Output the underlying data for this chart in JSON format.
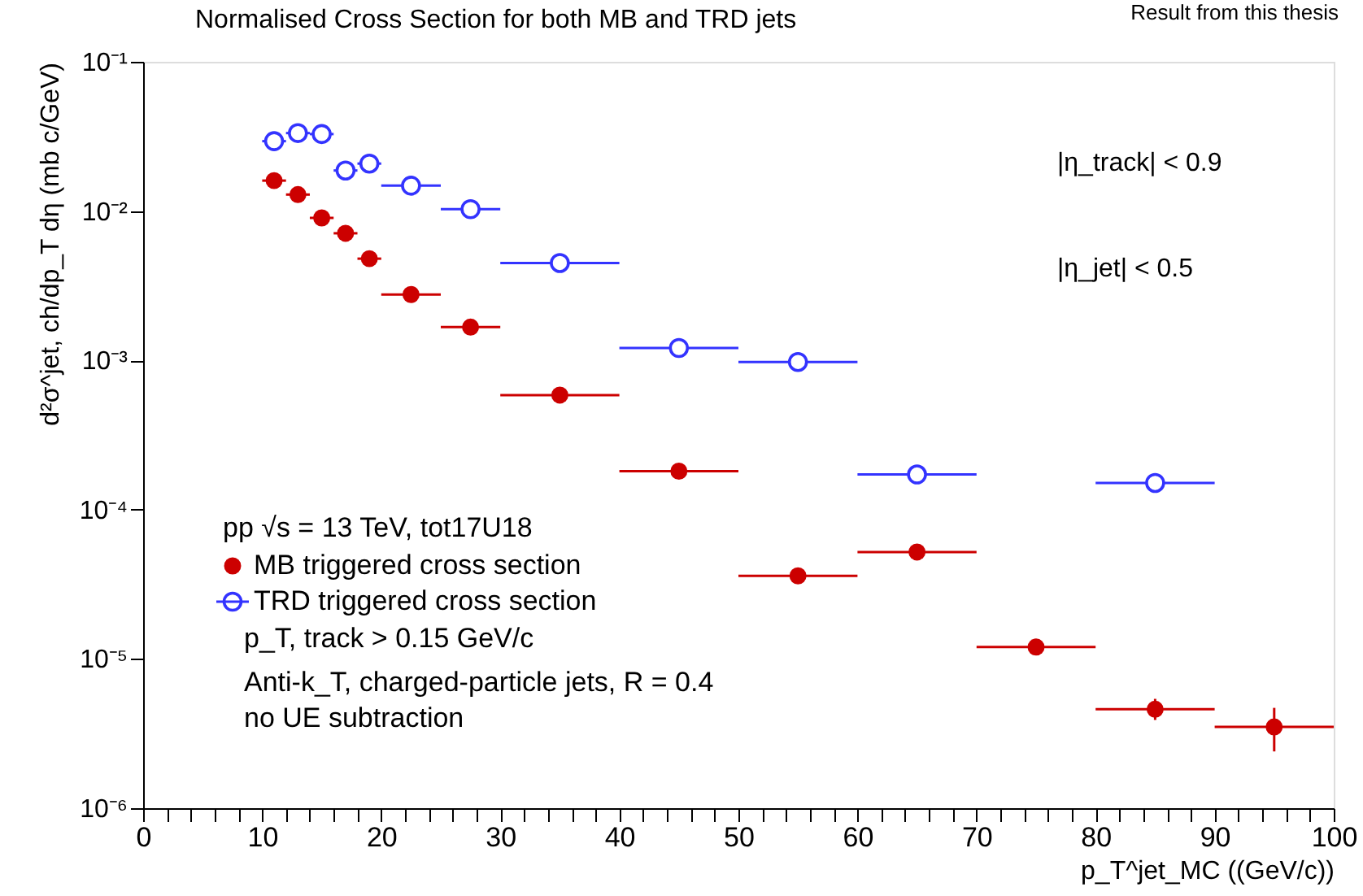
{
  "chart_data": {
    "type": "scatter",
    "title": "Normalised Cross Section for both MB and TRD jets",
    "xlabel": "p_T^jet_MC ((GeV/c))",
    "ylabel": "d²σ^jet, ch/dp_T dη  (mb c/GeV)",
    "series": [
      {
        "name": "MB triggered cross section",
        "color": "#cc0000",
        "marker": "circle",
        "x": [
          11,
          13,
          15,
          17,
          19,
          22.5,
          27.5,
          35,
          45,
          55,
          65,
          75,
          85,
          95
        ],
        "values": [
          0.016,
          0.0129,
          0.009,
          0.0071,
          0.0048,
          0.00276,
          0.00167,
          0.000585,
          0.000181,
          3.6e-05,
          5.2e-05,
          1.2e-05,
          4.6e-06,
          3.5e-06
        ],
        "xerrors": [
          [
            10,
            12
          ],
          [
            12,
            14
          ],
          [
            14,
            16
          ],
          [
            16,
            18
          ],
          [
            18,
            20
          ],
          [
            20,
            25
          ],
          [
            25,
            30
          ],
          [
            30,
            40
          ],
          [
            40,
            50
          ],
          [
            50,
            60
          ],
          [
            60,
            70
          ],
          [
            70,
            80
          ],
          [
            80,
            90
          ],
          [
            90,
            100
          ]
        ],
        "errors": [
          null,
          null,
          null,
          null,
          null,
          null,
          null,
          null,
          null,
          null,
          null,
          null,
          [
            3.9e-06,
            5.4e-06
          ],
          [
            2.4e-06,
            4.7e-06
          ]
        ]
      },
      {
        "name": "TRD triggered cross section",
        "color": "#3333ff",
        "marker": "circle",
        "x": [
          11,
          13,
          15,
          17,
          19,
          22.5,
          27.5,
          35,
          45,
          55,
          65,
          85
        ],
        "values": [
          0.0294,
          0.0333,
          0.0328,
          0.0187,
          0.0208,
          0.0148,
          0.0103,
          0.00449,
          0.00121,
          0.000975,
          0.000172,
          0.000151
        ],
        "xerrors": [
          [
            10,
            12
          ],
          [
            12,
            14
          ],
          [
            14,
            16
          ],
          [
            16,
            18
          ],
          [
            18,
            20
          ],
          [
            20,
            25
          ],
          [
            25,
            30
          ],
          [
            30,
            40
          ],
          [
            40,
            50
          ],
          [
            50,
            60
          ],
          [
            60,
            70
          ],
          [
            80,
            90
          ]
        ]
      }
    ],
    "log": "y",
    "xlim": [
      0,
      100
    ],
    "xticks": [
      0,
      {
        "value": 2,
        "label": null
      },
      {
        "value": 4,
        "label": null
      },
      {
        "value": 6,
        "label": null
      },
      {
        "value": 8,
        "label": null
      },
      10,
      {
        "value": 12,
        "label": null
      },
      {
        "value": 14,
        "label": null
      },
      {
        "value": 16,
        "label": null
      },
      {
        "value": 18,
        "label": null
      },
      20,
      {
        "value": 22,
        "label": null
      },
      {
        "value": 24,
        "label": null
      },
      {
        "value": 26,
        "label": null
      },
      {
        "value": 28,
        "label": null
      },
      30,
      {
        "value": 32,
        "label": null
      },
      {
        "value": 34,
        "label": null
      },
      {
        "value": 36,
        "label": null
      },
      {
        "value": 38,
        "label": null
      },
      40,
      {
        "value": 42,
        "label": null
      },
      {
        "value": 44,
        "label": null
      },
      {
        "value": 46,
        "label": null
      },
      {
        "value": 48,
        "label": null
      },
      50,
      {
        "value": 52,
        "label": null
      },
      {
        "value": 54,
        "label": null
      },
      {
        "value": 56,
        "label": null
      },
      {
        "value": 58,
        "label": null
      },
      60,
      {
        "value": 62,
        "label": null
      },
      {
        "value": 64,
        "label": null
      },
      {
        "value": 66,
        "label": null
      },
      {
        "value": 68,
        "label": null
      },
      70,
      {
        "value": 72,
        "label": null
      },
      {
        "value": 74,
        "label": null
      },
      {
        "value": 76,
        "label": null
      },
      {
        "value": 78,
        "label": null
      },
      80,
      {
        "value": 82,
        "label": null
      },
      {
        "value": 84,
        "label": null
      },
      {
        "value": 86,
        "label": null
      },
      {
        "value": 88,
        "label": null
      },
      90,
      {
        "value": 92,
        "label": null
      },
      {
        "value": 94,
        "label": null
      },
      {
        "value": 96,
        "label": null
      },
      {
        "value": 98,
        "label": null
      },
      100
    ],
    "ylim": [
      1e-06,
      0.1
    ],
    "yticks": [
      {
        "value": 1e-06,
        "label": "10⁻⁶"
      },
      {
        "value": 1e-05,
        "label": "10⁻⁵"
      },
      {
        "value": 0.0001,
        "label": "10⁻⁴"
      },
      {
        "value": 0.001,
        "label": "10⁻³"
      },
      {
        "value": 0.01,
        "label": "10⁻²"
      },
      {
        "value": 0.1,
        "label": "10⁻¹"
      }
    ],
    "annotations": [
      "Result from this thesis",
      "|η_track| < 0.9",
      "|η_jet| < 0.5",
      "pp √s = 13 TeV, tot17U18",
      "p_T, track > 0.15 GeV/c",
      "Anti-k_T, charged-particle jets, R = 0.4",
      "no UE subtraction"
    ],
    "legend": "bottom left",
    "grid": false
  }
}
